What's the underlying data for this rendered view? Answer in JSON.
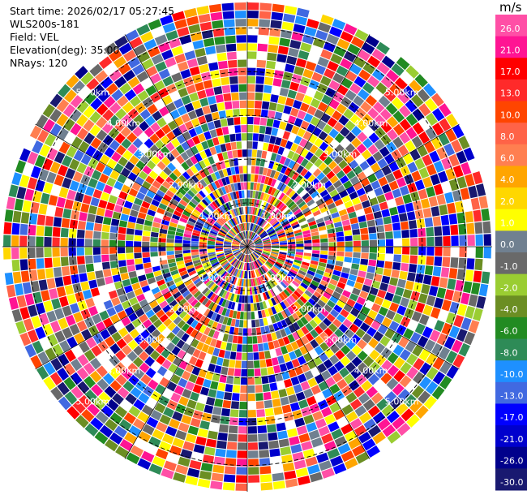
{
  "header": {
    "start_time": "Start time: 2026/02/17 05:27:45",
    "instrument": "WLS200s-181",
    "field": "Field: VEL",
    "elevation": "Elevation(deg): 35.00",
    "nrays": "NRays: 120"
  },
  "colorbar": {
    "unit": "m/s",
    "labels": [
      "26.0",
      "21.0",
      "17.0",
      "13.0",
      "10.0",
      "8.0",
      "6.0",
      "4.0",
      "2.0",
      "1.0",
      "0.0",
      "-1.0",
      "-2.0",
      "-4.0",
      "-6.0",
      "-8.0",
      "-10.0",
      "-13.0",
      "-17.0",
      "-21.0",
      "-26.0",
      "-30.0"
    ],
    "colors": [
      "#ff4fa6",
      "#ff1493",
      "#ff0000",
      "#ff2a2a",
      "#ff4500",
      "#ff6347",
      "#ff7f50",
      "#ffa500",
      "#ffd700",
      "#ffff00",
      "#708090",
      "#696969",
      "#9acd32",
      "#6b8e23",
      "#228b22",
      "#2e8b57",
      "#1e90ff",
      "#4169e1",
      "#0000ff",
      "#0000cd",
      "#00008b",
      "#191970"
    ]
  },
  "chart_data": {
    "type": "heatmap",
    "projection": "polar PPI",
    "field": "VEL",
    "units": "m/s",
    "elevation_deg": 35.0,
    "n_rays": 120,
    "range_rings_km": [
      1.0,
      2.0,
      3.0,
      4.0,
      5.0
    ],
    "ring_labels": [
      "1.00km",
      "2.00km",
      "3.00km",
      "4.00km",
      "5.00km"
    ],
    "max_range_km": 5.6,
    "color_range": [
      -30.0,
      26.0
    ]
  }
}
